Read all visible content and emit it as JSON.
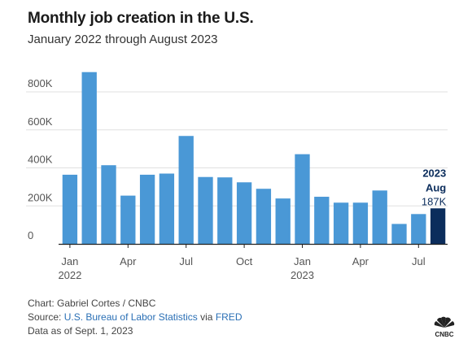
{
  "title": "Monthly job creation in the U.S.",
  "subtitle": "January 2022 through August 2023",
  "chart_data": {
    "type": "bar",
    "categories": [
      "Jan 2022",
      "Feb 2022",
      "Mar 2022",
      "Apr 2022",
      "May 2022",
      "Jun 2022",
      "Jul 2022",
      "Aug 2022",
      "Sep 2022",
      "Oct 2022",
      "Nov 2022",
      "Dec 2022",
      "Jan 2023",
      "Feb 2023",
      "Mar 2023",
      "Apr 2023",
      "May 2023",
      "Jun 2023",
      "Jul 2023",
      "Aug 2023"
    ],
    "values": [
      364000,
      904000,
      414000,
      254000,
      364000,
      370000,
      568000,
      352000,
      350000,
      324000,
      290000,
      239000,
      472000,
      248000,
      217000,
      217000,
      281000,
      105000,
      157000,
      187000
    ],
    "ylim": [
      0,
      1000000
    ],
    "yticks": [
      0,
      200000,
      400000,
      600000,
      800000
    ],
    "ytick_labels": [
      "0",
      "200K",
      "400K",
      "600K",
      "800K"
    ],
    "xtick_labels": [
      {
        "index": 0,
        "label": "Jan",
        "year": "2022"
      },
      {
        "index": 3,
        "label": "Apr",
        "year": ""
      },
      {
        "index": 6,
        "label": "Jul",
        "year": ""
      },
      {
        "index": 9,
        "label": "Oct",
        "year": ""
      },
      {
        "index": 12,
        "label": "Jan",
        "year": "2023"
      },
      {
        "index": 15,
        "label": "Apr",
        "year": ""
      },
      {
        "index": 18,
        "label": "Jul",
        "year": ""
      }
    ],
    "highlight_index": 19,
    "annotation": {
      "year": "2023",
      "month": "Aug",
      "value_label": "187K"
    },
    "grid": true,
    "colors": {
      "bar": "#4a98d6",
      "highlight": "#0b2d5c",
      "grid": "#e0e0e0",
      "axis": "#222222",
      "label": "#555555"
    }
  },
  "footer": {
    "credit": "Chart: Gabriel Cortes / CNBC",
    "source_prefix": "Source: ",
    "source_link1": "U.S. Bureau of Labor Statistics",
    "source_mid": " via ",
    "source_link2": "FRED",
    "date_note": "Data as of Sept. 1, 2023"
  },
  "logo": {
    "text": "CNBC",
    "icon": "cnbc-peacock-icon"
  }
}
